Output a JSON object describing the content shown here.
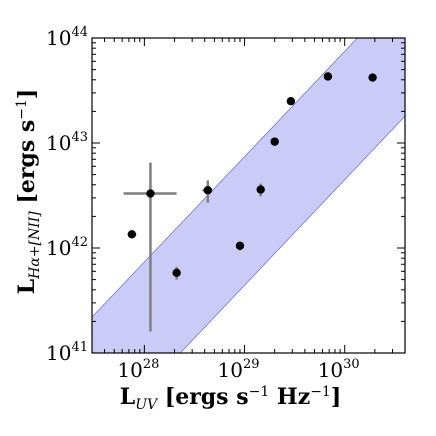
{
  "chart_data": {
    "type": "scatter",
    "title": "",
    "xlabel": {
      "base": "L",
      "sub": "UV",
      "text1": " [ergs s",
      "sup1": "−1",
      "text2": " Hz",
      "sup2": "−1",
      "text3": "]"
    },
    "ylabel": {
      "base": "L",
      "sub": "Hα+[NII]",
      "text1": " [ergs s",
      "sup1": "−1",
      "text2": "]"
    },
    "xscale": "log",
    "yscale": "log",
    "xlim": [
      3e+27,
      4e+30
    ],
    "ylim": [
      1e+41,
      1e+44
    ],
    "xticks": [
      {
        "value": 1e+28,
        "base": "10",
        "exp": "28"
      },
      {
        "value": 1e+29,
        "base": "10",
        "exp": "29"
      },
      {
        "value": 1e+30,
        "base": "10",
        "exp": "30"
      }
    ],
    "yticks": [
      {
        "value": 1e+41,
        "base": "10",
        "exp": "41"
      },
      {
        "value": 1e+42,
        "base": "10",
        "exp": "42"
      },
      {
        "value": 1e+43,
        "base": "10",
        "exp": "43"
      },
      {
        "value": 1e+44,
        "base": "10",
        "exp": "44"
      }
    ],
    "band": {
      "color": "#c8c8f8",
      "edge_color": "#5555cc",
      "slope": 1.0,
      "upper_points": [
        [
          3e+27,
          2.2e+41
        ],
        [
          4e+30,
          3e+44
        ]
      ],
      "lower_points": [
        [
          3e+27,
          1.3e+40
        ],
        [
          4e+30,
          1.8e+43
        ]
      ]
    },
    "series": [
      {
        "marker_color": "#000000",
        "errorbar_color": "#7f7f7f",
        "points": [
          {
            "x": 7.5e+27,
            "y": 1.35e+42,
            "xerr": [
              6.8e+27,
              8.3e+27
            ],
            "yerr": [
              1.28e+42,
              1.42e+42
            ]
          },
          {
            "x": 1.15e+28,
            "y": 3.3e+42,
            "xerr": [
              6.2e+27,
              2.1e+28
            ],
            "yerr": [
              1.6e+41,
              6.5e+42
            ]
          },
          {
            "x": 2.1e+28,
            "y": 5.8e+41,
            "xerr": [
              1.95e+28,
              2.25e+28
            ],
            "yerr": [
              5e+41,
              6.6e+41
            ]
          },
          {
            "x": 4.3e+28,
            "y": 3.55e+42,
            "xerr": [
              3.8e+28,
              4.8e+28
            ],
            "yerr": [
              2.7e+42,
              4.4e+42
            ]
          },
          {
            "x": 9e+28,
            "y": 1.05e+42,
            "xerr": [
              8.5e+28,
              9.5e+28
            ],
            "yerr": [
              9.5e+41,
              1.15e+42
            ]
          },
          {
            "x": 1.45e+29,
            "y": 3.6e+42,
            "xerr": [
              1.35e+29,
              1.55e+29
            ],
            "yerr": [
              3.1e+42,
              4.1e+42
            ]
          },
          {
            "x": 2e+29,
            "y": 1.03e+43,
            "xerr": [
              1.85e+29,
              2.15e+29
            ],
            "yerr": [
              9.8e+42,
              1.08e+43
            ]
          },
          {
            "x": 2.9e+29,
            "y": 2.5e+43,
            "xerr": [
              2.8e+29,
              3e+29
            ],
            "yerr": [
              2.4e+43,
              2.6e+43
            ]
          },
          {
            "x": 6.8e+29,
            "y": 4.3e+43,
            "xerr": [
              6.6e+29,
              7e+29
            ],
            "yerr": [
              4.2e+43,
              4.4e+43
            ]
          },
          {
            "x": 1.9e+30,
            "y": 4.2e+43,
            "xerr": [
              1.8e+30,
              2e+30
            ],
            "yerr": [
              3.9e+43,
              4.5e+43
            ]
          }
        ]
      }
    ]
  }
}
